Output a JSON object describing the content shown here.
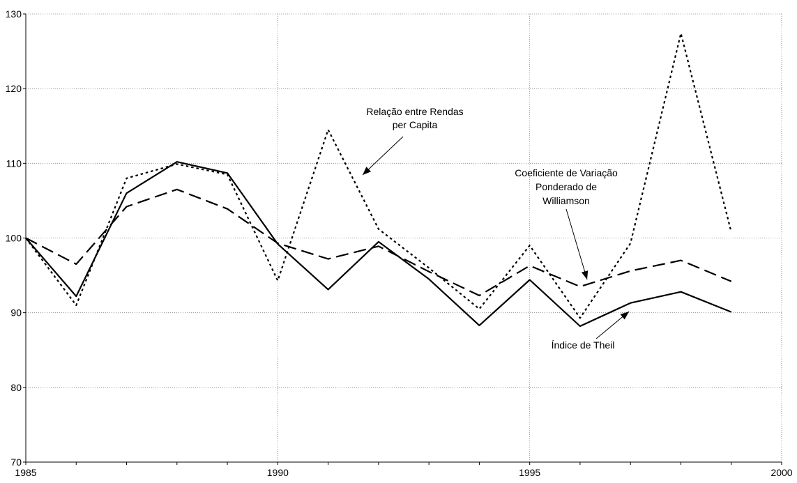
{
  "chart_data": {
    "type": "line",
    "title": "",
    "xlabel": "",
    "ylabel": "",
    "xlim": [
      1985,
      2000
    ],
    "ylim": [
      70,
      130
    ],
    "x_ticks": [
      1985,
      1990,
      1995,
      2000
    ],
    "y_ticks": [
      70,
      80,
      90,
      100,
      110,
      120,
      130
    ],
    "grid": "dotted",
    "x": [
      1985,
      1986,
      1987,
      1988,
      1989,
      1990,
      1991,
      1992,
      1993,
      1994,
      1995,
      1996,
      1997,
      1998,
      1999
    ],
    "series": [
      {
        "key": "relacao",
        "style": "dotted",
        "values": [
          100,
          91.0,
          108.0,
          109.9,
          108.5,
          94.3,
          114.5,
          101.2,
          96.0,
          90.5,
          99.0,
          89.3,
          99.3,
          127.4,
          100.8
        ]
      },
      {
        "key": "williamson",
        "style": "dashed",
        "values": [
          100,
          96.5,
          104.2,
          106.5,
          103.9,
          99.3,
          97.2,
          98.9,
          95.5,
          92.3,
          96.3,
          93.5,
          95.6,
          97.0,
          94.2
        ]
      },
      {
        "key": "theil",
        "style": "solid",
        "values": [
          100,
          92.2,
          106.0,
          110.2,
          108.7,
          99.2,
          93.1,
          99.5,
          94.5,
          88.3,
          94.4,
          88.2,
          91.3,
          92.8,
          90.1
        ]
      }
    ],
    "annotations": [
      {
        "key": "relacao",
        "lines": [
          "Relação entre Rendas",
          "per Capita"
        ]
      },
      {
        "key": "williamson",
        "lines": [
          "Coeficiente de Variação",
          "Ponderado de",
          "Williamson"
        ]
      },
      {
        "key": "theil",
        "lines": [
          "Índice de Theil"
        ]
      }
    ]
  }
}
